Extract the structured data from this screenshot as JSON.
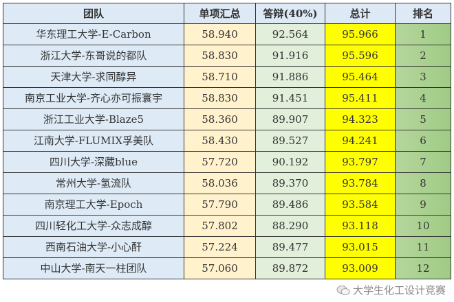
{
  "headers": [
    "团队",
    "单项汇总",
    "答辩(40%)",
    "总计",
    "排名"
  ],
  "rows": [
    {
      "team": "华东理工大学-E-Carbon",
      "single": "58.940",
      "defense": "92.564",
      "total": "95.966",
      "rank": "1"
    },
    {
      "team": "浙江大学-东哥说的都队",
      "single": "58.830",
      "defense": "91.916",
      "total": "95.596",
      "rank": "2"
    },
    {
      "team": "天津大学-求同醇异",
      "single": "58.710",
      "defense": "91.886",
      "total": "95.464",
      "rank": "3"
    },
    {
      "team": "南京工业大学-齐心亦可振寰宇",
      "single": "58.830",
      "defense": "91.451",
      "total": "95.411",
      "rank": "4"
    },
    {
      "team": "浙江工业大学-Blaze5",
      "single": "58.360",
      "defense": "89.907",
      "total": "94.323",
      "rank": "5"
    },
    {
      "team": "江南大学-FLUMIX孚美队",
      "single": "58.430",
      "defense": "89.527",
      "total": "94.241",
      "rank": "6"
    },
    {
      "team": "四川大学-深藏blue",
      "single": "57.720",
      "defense": "90.192",
      "total": "93.797",
      "rank": "7"
    },
    {
      "team": "常州大学-氢流队",
      "single": "58.036",
      "defense": "89.370",
      "total": "93.784",
      "rank": "8"
    },
    {
      "team": "南京理工大学-Epoch",
      "single": "57.790",
      "defense": "89.486",
      "total": "93.584",
      "rank": "9"
    },
    {
      "team": "四川轻化工大学-众志成醇",
      "single": "57.802",
      "defense": "88.290",
      "total": "93.118",
      "rank": "10"
    },
    {
      "team": "西南石油大学-小心酐",
      "single": "57.224",
      "defense": "89.477",
      "total": "93.015",
      "rank": "11"
    },
    {
      "team": "中山大学-南天一柱团队",
      "single": "57.060",
      "defense": "89.872",
      "total": "93.009",
      "rank": "12"
    }
  ],
  "watermark": {
    "text": "大学生化工设计竞赛",
    "icon": "wechat-icon"
  },
  "colors": {
    "header": "#dde9f5",
    "team": "#deebf7",
    "single": "#fff2cc",
    "defense": "#e2efda",
    "total": "#ffff00",
    "rank": "#a9d08e"
  }
}
